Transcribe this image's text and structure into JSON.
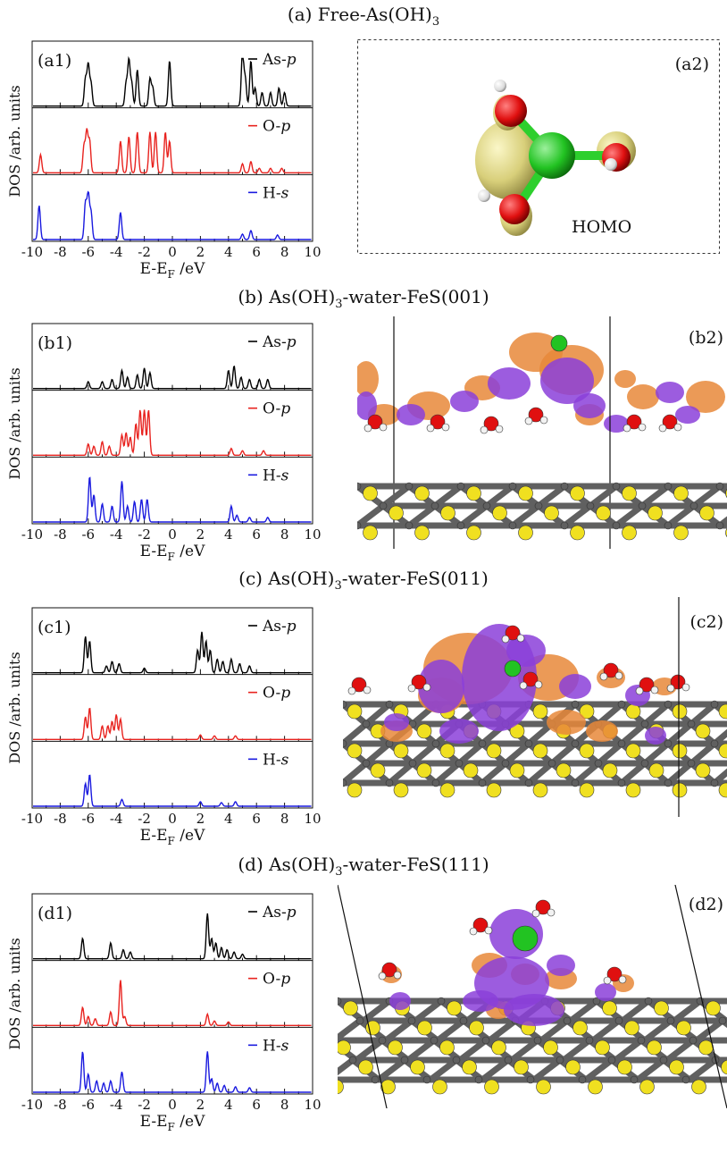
{
  "titles": {
    "a": {
      "pre": "(a) Free-As(OH)",
      "sub": "3",
      "post": ""
    },
    "b": {
      "pre": "(b) As(OH)",
      "sub": "3",
      "post": "-water-FeS(001)"
    },
    "c": {
      "pre": "(c) As(OH)",
      "sub": "3",
      "post": "-water-FeS(011)"
    },
    "d": {
      "pre": "(d) As(OH)",
      "sub": "3",
      "post": "-water-FeS(111)"
    }
  },
  "structure_labels": {
    "a2": "(a2)",
    "b2": "(b2)",
    "c2": "(c2)",
    "d2": "(d2)",
    "homo": "HOMO"
  },
  "axis": {
    "ylabel": "DOS /arb. units",
    "xlabel_pre": "E-E",
    "xlabel_sub": "F",
    "xlabel_post": " /eV",
    "xticks": [
      "-10",
      "-8",
      "-6",
      "-4",
      "-2",
      "0",
      "2",
      "4",
      "6",
      "8",
      "10"
    ]
  },
  "legend": {
    "as": {
      "pre": "As-",
      "italic": "p"
    },
    "o": {
      "pre": "O-",
      "italic": "p"
    },
    "h": {
      "pre": "H-",
      "italic": "s"
    }
  },
  "colors": {
    "as": "#000000",
    "o": "#e8231f",
    "h": "#1a1adf",
    "orbital_yellow": "#e8e08a",
    "iso_orange": "#e8883a",
    "iso_purple": "#8b3fd9",
    "atom_as": "#22c322",
    "atom_o": "#e01010",
    "atom_h": "#f2f2f2",
    "atom_s": "#f0e020",
    "atom_fe": "#606060"
  },
  "chart_data": [
    {
      "type": "line",
      "panel": "(a1)",
      "xlim": [
        -10,
        10
      ],
      "xlabel": "E-EF /eV",
      "ylabel": "DOS /arb. units",
      "series": [
        {
          "name": "As-p",
          "peaks": [
            [
              -6.2,
              0.6
            ],
            [
              -6.0,
              0.9
            ],
            [
              -5.8,
              0.5
            ],
            [
              -3.3,
              0.5
            ],
            [
              -3.1,
              1.0
            ],
            [
              -2.9,
              0.5
            ],
            [
              -2.5,
              0.8
            ],
            [
              -1.6,
              0.6
            ],
            [
              -1.4,
              0.4
            ],
            [
              -0.2,
              1.0
            ],
            [
              5.0,
              1.2
            ],
            [
              5.2,
              0.6
            ],
            [
              5.6,
              1.0
            ],
            [
              5.9,
              0.4
            ],
            [
              6.4,
              0.3
            ],
            [
              7.0,
              0.3
            ],
            [
              7.6,
              0.4
            ],
            [
              8.0,
              0.3
            ]
          ]
        },
        {
          "name": "O-p",
          "peaks": [
            [
              -9.4,
              0.4
            ],
            [
              -6.3,
              0.6
            ],
            [
              -6.1,
              0.9
            ],
            [
              -5.9,
              0.7
            ],
            [
              -3.7,
              0.7
            ],
            [
              -3.1,
              0.8
            ],
            [
              -2.5,
              0.9
            ],
            [
              -1.6,
              0.9
            ],
            [
              -1.2,
              0.9
            ],
            [
              -0.5,
              0.9
            ],
            [
              -0.2,
              0.7
            ],
            [
              5.0,
              0.2
            ],
            [
              5.6,
              0.25
            ],
            [
              6.2,
              0.1
            ],
            [
              7.0,
              0.1
            ],
            [
              7.8,
              0.1
            ]
          ]
        },
        {
          "name": "H-s",
          "peaks": [
            [
              -9.5,
              0.75
            ],
            [
              -6.2,
              0.8
            ],
            [
              -6.0,
              1.0
            ],
            [
              -5.8,
              0.6
            ],
            [
              -3.7,
              0.6
            ],
            [
              5.0,
              0.12
            ],
            [
              5.6,
              0.2
            ],
            [
              7.5,
              0.1
            ]
          ]
        }
      ]
    },
    {
      "type": "line",
      "panel": "(b1)",
      "xlim": [
        -10,
        10
      ],
      "xlabel": "E-EF /eV",
      "ylabel": "DOS /arb. units",
      "series": [
        {
          "name": "As-p",
          "peaks": [
            [
              -6.0,
              0.15
            ],
            [
              -5.0,
              0.15
            ],
            [
              -4.3,
              0.2
            ],
            [
              -3.6,
              0.4
            ],
            [
              -3.2,
              0.25
            ],
            [
              -2.5,
              0.3
            ],
            [
              -2.0,
              0.45
            ],
            [
              -1.6,
              0.35
            ],
            [
              4.0,
              0.4
            ],
            [
              4.4,
              0.5
            ],
            [
              4.9,
              0.25
            ],
            [
              5.5,
              0.2
            ],
            [
              6.2,
              0.2
            ],
            [
              6.8,
              0.2
            ]
          ]
        },
        {
          "name": "O-p",
          "peaks": [
            [
              -6.0,
              0.25
            ],
            [
              -5.6,
              0.2
            ],
            [
              -5.0,
              0.3
            ],
            [
              -4.5,
              0.2
            ],
            [
              -3.6,
              0.45
            ],
            [
              -3.3,
              0.5
            ],
            [
              -3.0,
              0.4
            ],
            [
              -2.6,
              0.7
            ],
            [
              -2.3,
              1.0
            ],
            [
              -2.0,
              1.0
            ],
            [
              -1.7,
              1.0
            ],
            [
              4.2,
              0.15
            ],
            [
              5.0,
              0.1
            ],
            [
              6.5,
              0.1
            ]
          ]
        },
        {
          "name": "H-s",
          "peaks": [
            [
              -5.9,
              1.0
            ],
            [
              -5.6,
              0.6
            ],
            [
              -5.0,
              0.4
            ],
            [
              -4.3,
              0.35
            ],
            [
              -3.6,
              0.9
            ],
            [
              -3.2,
              0.35
            ],
            [
              -2.7,
              0.45
            ],
            [
              -2.2,
              0.5
            ],
            [
              -1.8,
              0.5
            ],
            [
              4.2,
              0.35
            ],
            [
              4.6,
              0.15
            ],
            [
              5.5,
              0.1
            ],
            [
              6.8,
              0.1
            ]
          ]
        }
      ]
    },
    {
      "type": "line",
      "panel": "(c1)",
      "xlim": [
        -10,
        10
      ],
      "xlabel": "E-EF /eV",
      "ylabel": "DOS /arb. units",
      "series": [
        {
          "name": "As-p",
          "peaks": [
            [
              -6.2,
              0.8
            ],
            [
              -5.9,
              0.7
            ],
            [
              -4.7,
              0.15
            ],
            [
              -4.3,
              0.25
            ],
            [
              -3.8,
              0.2
            ],
            [
              -2.0,
              0.1
            ],
            [
              1.8,
              0.5
            ],
            [
              2.1,
              0.9
            ],
            [
              2.4,
              0.7
            ],
            [
              2.7,
              0.5
            ],
            [
              3.2,
              0.3
            ],
            [
              3.6,
              0.25
            ],
            [
              4.2,
              0.3
            ],
            [
              4.8,
              0.2
            ],
            [
              5.5,
              0.15
            ]
          ]
        },
        {
          "name": "O-p",
          "peaks": [
            [
              -6.2,
              0.5
            ],
            [
              -5.9,
              0.7
            ],
            [
              -5.0,
              0.3
            ],
            [
              -4.6,
              0.3
            ],
            [
              -4.3,
              0.4
            ],
            [
              -4.0,
              0.55
            ],
            [
              -3.7,
              0.45
            ],
            [
              2.0,
              0.1
            ],
            [
              3.0,
              0.08
            ],
            [
              4.5,
              0.08
            ]
          ]
        },
        {
          "name": "H-s",
          "peaks": [
            [
              -6.2,
              0.5
            ],
            [
              -5.9,
              0.7
            ],
            [
              -3.6,
              0.15
            ],
            [
              2.0,
              0.1
            ],
            [
              3.5,
              0.08
            ],
            [
              4.5,
              0.1
            ]
          ]
        }
      ]
    },
    {
      "type": "line",
      "panel": "(d1)",
      "xlim": [
        -10,
        10
      ],
      "xlabel": "E-EF /eV",
      "ylabel": "DOS /arb. units",
      "series": [
        {
          "name": "As-p",
          "peaks": [
            [
              -6.4,
              0.45
            ],
            [
              -4.4,
              0.35
            ],
            [
              -3.5,
              0.2
            ],
            [
              -3.0,
              0.15
            ],
            [
              2.5,
              1.0
            ],
            [
              2.8,
              0.45
            ],
            [
              3.1,
              0.35
            ],
            [
              3.5,
              0.25
            ],
            [
              3.9,
              0.2
            ],
            [
              4.4,
              0.15
            ],
            [
              5.0,
              0.1
            ]
          ]
        },
        {
          "name": "O-p",
          "peaks": [
            [
              -6.4,
              0.4
            ],
            [
              -6.0,
              0.2
            ],
            [
              -5.5,
              0.15
            ],
            [
              -4.4,
              0.3
            ],
            [
              -3.7,
              1.0
            ],
            [
              -3.4,
              0.2
            ],
            [
              2.5,
              0.25
            ],
            [
              3.0,
              0.1
            ],
            [
              4.0,
              0.08
            ]
          ]
        },
        {
          "name": "H-s",
          "peaks": [
            [
              -6.4,
              0.9
            ],
            [
              -6.0,
              0.4
            ],
            [
              -5.4,
              0.25
            ],
            [
              -4.9,
              0.2
            ],
            [
              -4.4,
              0.25
            ],
            [
              -3.6,
              0.45
            ],
            [
              2.5,
              0.9
            ],
            [
              2.8,
              0.3
            ],
            [
              3.2,
              0.2
            ],
            [
              3.7,
              0.15
            ],
            [
              4.5,
              0.12
            ],
            [
              5.5,
              0.1
            ]
          ]
        }
      ]
    }
  ]
}
